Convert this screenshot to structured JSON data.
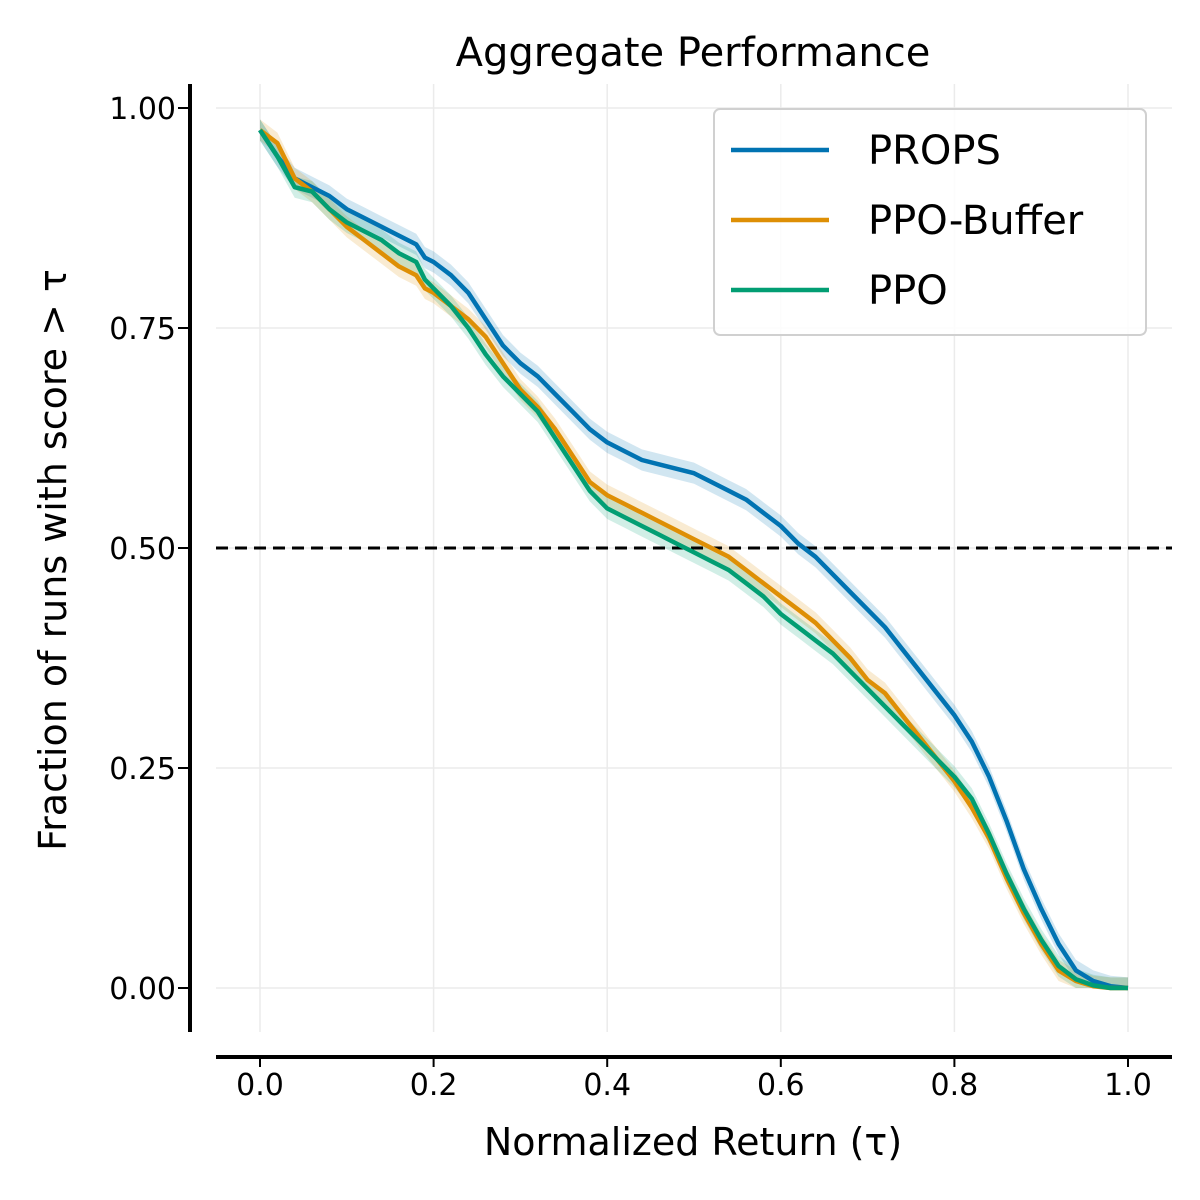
{
  "chart_data": {
    "type": "line",
    "title": "Aggregate Performance",
    "xlabel": "Normalized Return (τ)",
    "ylabel": "Fraction of runs with score > τ",
    "xlim": [
      -0.05,
      1.05
    ],
    "ylim": [
      -0.05,
      1.03
    ],
    "xticks": [
      0.0,
      0.2,
      0.4,
      0.6,
      0.8,
      1.0
    ],
    "xtick_labels": [
      "0.0",
      "0.2",
      "0.4",
      "0.6",
      "0.8",
      "1.0"
    ],
    "yticks": [
      0.0,
      0.25,
      0.5,
      0.75,
      1.0
    ],
    "ytick_labels": [
      "0.00",
      "0.25",
      "0.50",
      "0.75",
      "1.00"
    ],
    "grid": true,
    "reference_line": {
      "y": 0.5,
      "style": "dashed",
      "color": "#000000"
    },
    "legend_position": "top-right",
    "x": [
      0.0,
      0.02,
      0.04,
      0.06,
      0.08,
      0.1,
      0.12,
      0.14,
      0.16,
      0.18,
      0.19,
      0.2,
      0.22,
      0.24,
      0.26,
      0.28,
      0.3,
      0.32,
      0.34,
      0.36,
      0.38,
      0.4,
      0.42,
      0.44,
      0.46,
      0.48,
      0.5,
      0.52,
      0.54,
      0.56,
      0.58,
      0.6,
      0.62,
      0.64,
      0.66,
      0.68,
      0.7,
      0.72,
      0.74,
      0.76,
      0.78,
      0.8,
      0.82,
      0.84,
      0.86,
      0.88,
      0.9,
      0.92,
      0.94,
      0.96,
      0.98,
      1.0
    ],
    "series": [
      {
        "name": "PROPS",
        "color": "#0173b2",
        "values": [
          0.975,
          0.945,
          0.92,
          0.91,
          0.9,
          0.885,
          0.875,
          0.865,
          0.855,
          0.845,
          0.83,
          0.825,
          0.81,
          0.79,
          0.76,
          0.73,
          0.71,
          0.695,
          0.675,
          0.655,
          0.635,
          0.62,
          0.61,
          0.6,
          0.595,
          0.59,
          0.585,
          0.575,
          0.565,
          0.555,
          0.54,
          0.525,
          0.505,
          0.49,
          0.47,
          0.45,
          0.43,
          0.41,
          0.385,
          0.36,
          0.335,
          0.31,
          0.28,
          0.24,
          0.19,
          0.135,
          0.09,
          0.05,
          0.02,
          0.008,
          0.002,
          0.0
        ]
      },
      {
        "name": "PPO-Buffer",
        "color": "#de8f05",
        "values": [
          0.975,
          0.96,
          0.92,
          0.905,
          0.885,
          0.865,
          0.85,
          0.835,
          0.82,
          0.81,
          0.795,
          0.79,
          0.775,
          0.76,
          0.74,
          0.71,
          0.68,
          0.66,
          0.635,
          0.605,
          0.575,
          0.56,
          0.55,
          0.54,
          0.53,
          0.52,
          0.51,
          0.5,
          0.49,
          0.475,
          0.46,
          0.445,
          0.43,
          0.415,
          0.395,
          0.375,
          0.35,
          0.335,
          0.31,
          0.285,
          0.26,
          0.235,
          0.205,
          0.17,
          0.125,
          0.085,
          0.05,
          0.02,
          0.008,
          0.002,
          0.0,
          0.0
        ]
      },
      {
        "name": "PPO",
        "color": "#029e73",
        "values": [
          0.975,
          0.945,
          0.91,
          0.905,
          0.885,
          0.87,
          0.86,
          0.85,
          0.835,
          0.825,
          0.805,
          0.795,
          0.775,
          0.75,
          0.72,
          0.695,
          0.675,
          0.655,
          0.625,
          0.595,
          0.565,
          0.545,
          0.535,
          0.525,
          0.515,
          0.505,
          0.495,
          0.485,
          0.475,
          0.46,
          0.445,
          0.425,
          0.41,
          0.395,
          0.38,
          0.36,
          0.34,
          0.32,
          0.3,
          0.28,
          0.26,
          0.24,
          0.215,
          0.175,
          0.13,
          0.09,
          0.055,
          0.025,
          0.01,
          0.003,
          0.0,
          0.0
        ]
      }
    ]
  }
}
